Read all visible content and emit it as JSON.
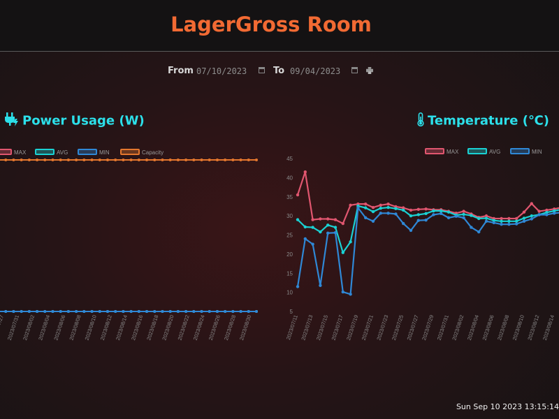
{
  "header": {
    "title": "LagerGross Room"
  },
  "filter": {
    "from_label": "From",
    "from_value": "07/10/2023",
    "to_label": "To",
    "to_value": "09/04/2023"
  },
  "footer": {
    "clock": "Sun Sep 10 2023 13:15:14"
  },
  "icons": {
    "plug": "plug-icon",
    "thermometer": "thermometer-icon",
    "calendar": "calendar-icon",
    "print": "print-icon"
  },
  "colors": {
    "max": "#e0566f",
    "avg": "#1ad1d3",
    "min": "#2f88d6",
    "capacity": "#e4772e",
    "title": "#f26a33",
    "section": "#2ce0ea"
  },
  "chart_data": [
    {
      "type": "line",
      "title": "Power Usage (W)",
      "legend_position": "top",
      "x": [
        "2023/07/27",
        "2023/07/29",
        "2023/07/31",
        "2023/08/02",
        "2023/08/04",
        "2023/08/06",
        "2023/08/08",
        "2023/08/10",
        "2023/08/12",
        "2023/08/14",
        "2023/08/16",
        "2023/08/18",
        "2023/08/20",
        "2023/08/22",
        "2023/08/24",
        "2023/08/26",
        "2023/08/28",
        "2023/08/30"
      ],
      "tick_labels": [
        "2023/07/27",
        "2023/07/31",
        "2023/08/02",
        "2023/08/04",
        "2023/08/06",
        "2023/08/08",
        "2023/08/10",
        "2023/08/12",
        "2023/08/14",
        "2023/08/16",
        "2023/08/18",
        "2023/08/20",
        "2023/08/22",
        "2023/08/24",
        "2023/08/26",
        "2023/08/28",
        "2023/08/30"
      ],
      "series": [
        {
          "name": "MAX",
          "color": "#e0566f",
          "level": "baseline"
        },
        {
          "name": "AVG",
          "color": "#1ad1d3",
          "level": "baseline"
        },
        {
          "name": "MIN",
          "color": "#2f88d6",
          "level": "baseline"
        },
        {
          "name": "Capacity",
          "color": "#e4772e",
          "level": "top"
        }
      ],
      "points_visible": 34
    },
    {
      "type": "line",
      "title": "Temperature (℃)",
      "legend_position": "top",
      "ylim": [
        5,
        45
      ],
      "yticks": [
        5,
        10,
        15,
        20,
        25,
        30,
        35,
        40,
        45
      ],
      "x": [
        "2023/07/11",
        "2023/07/12",
        "2023/07/13",
        "2023/07/14",
        "2023/07/15",
        "2023/07/16",
        "2023/07/17",
        "2023/07/18",
        "2023/07/19",
        "2023/07/20",
        "2023/07/21",
        "2023/07/22",
        "2023/07/23",
        "2023/07/24",
        "2023/07/25",
        "2023/07/26",
        "2023/07/27",
        "2023/07/28",
        "2023/07/29",
        "2023/07/30",
        "2023/07/31",
        "2023/08/01",
        "2023/08/02",
        "2023/08/03",
        "2023/08/04",
        "2023/08/05",
        "2023/08/06",
        "2023/08/07",
        "2023/08/08",
        "2023/08/09",
        "2023/08/10",
        "2023/08/11",
        "2023/08/12",
        "2023/08/13",
        "2023/08/14",
        "2023/08/15",
        "2023/08/16"
      ],
      "tick_labels": [
        "2023/07/11",
        "2023/07/13",
        "2023/07/15",
        "2023/07/17",
        "2023/07/19",
        "2023/07/21",
        "2023/07/23",
        "2023/07/25",
        "2023/07/27",
        "2023/07/29",
        "2023/07/31",
        "2023/08/02",
        "2023/08/04",
        "2023/08/06",
        "2023/08/08",
        "2023/08/10",
        "2023/08/12",
        "2023/08/14"
      ],
      "series": [
        {
          "name": "MAX",
          "color": "#e0566f",
          "values": [
            35.5,
            41.5,
            29,
            29.2,
            29.2,
            29,
            28,
            32.8,
            33.1,
            33.1,
            32.2,
            32.8,
            33.1,
            32.4,
            32.1,
            31.5,
            31.7,
            31.8,
            31.6,
            31.6,
            31.2,
            30.7,
            31.2,
            30.5,
            29.6,
            30,
            29.3,
            29.3,
            29.3,
            29.3,
            31,
            33.2,
            31.2,
            31.5,
            31.8,
            32.2,
            32.3
          ]
        },
        {
          "name": "AVG",
          "color": "#1ad1d3",
          "values": [
            29,
            27.1,
            27,
            25.8,
            27.6,
            27,
            20.4,
            23.2,
            32.6,
            32.1,
            31.1,
            32,
            32.2,
            31.9,
            31.5,
            30,
            30.3,
            30.6,
            31.3,
            31.3,
            31,
            30.2,
            30.4,
            30.1,
            29.3,
            29.4,
            28.8,
            28.6,
            28.6,
            28.6,
            29.4,
            30,
            30.3,
            30.9,
            31.3,
            31.7,
            31.9
          ]
        },
        {
          "name": "MIN",
          "color": "#2f88d6",
          "values": [
            11.5,
            24,
            22.6,
            11.8,
            25.5,
            25.6,
            10.1,
            9.5,
            32.1,
            29.5,
            28.6,
            30.7,
            30.7,
            30.5,
            28,
            26.2,
            28.8,
            28.9,
            30.3,
            30.6,
            29.5,
            29.9,
            29.5,
            27,
            25.8,
            28.6,
            28.2,
            27.8,
            27.8,
            27.9,
            28.6,
            29.2,
            30.3,
            30.3,
            30.7,
            30.9,
            31.1
          ]
        }
      ]
    }
  ]
}
